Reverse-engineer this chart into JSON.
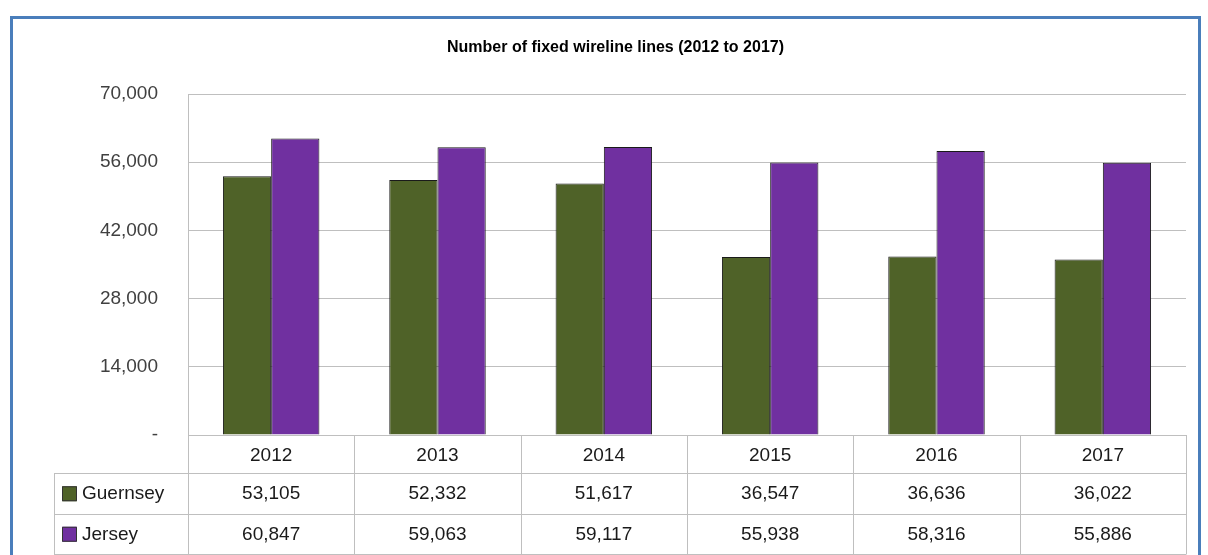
{
  "chart_data": {
    "type": "bar",
    "title": "Number of fixed wireline lines (2012 to 2017)",
    "categories": [
      "2012",
      "2013",
      "2014",
      "2015",
      "2016",
      "2017"
    ],
    "series": [
      {
        "name": "Guernsey",
        "color": "#4f6228",
        "values": [
          53105,
          52332,
          51617,
          36547,
          36636,
          36022
        ],
        "value_labels": [
          "53,105",
          "52,332",
          "51,617",
          "36,547",
          "36,636",
          "36,022"
        ]
      },
      {
        "name": "Jersey",
        "color": "#7030a0",
        "values": [
          60847,
          59063,
          59117,
          55938,
          58316,
          55886
        ],
        "value_labels": [
          "60,847",
          "59,063",
          "59,117",
          "55,938",
          "58,316",
          "55,886"
        ]
      }
    ],
    "ylim": [
      0,
      70000
    ],
    "yticks": [
      {
        "value": 0,
        "label": "-"
      },
      {
        "value": 14000,
        "label": "14,000"
      },
      {
        "value": 28000,
        "label": "28,000"
      },
      {
        "value": 42000,
        "label": "42,000"
      },
      {
        "value": 56000,
        "label": "56,000"
      },
      {
        "value": 70000,
        "label": "70,000"
      }
    ],
    "grid": "y",
    "legend": "bottom"
  }
}
